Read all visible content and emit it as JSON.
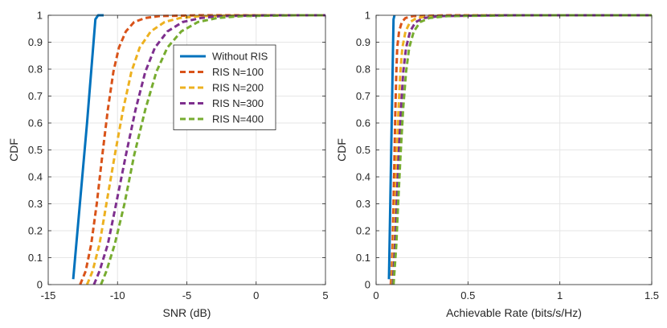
{
  "figure": {
    "colors": {
      "axis": "#262626",
      "grid": "#e6e6e6",
      "legend_border": "#262626"
    }
  },
  "chart_data": [
    {
      "type": "line",
      "xlabel": "SNR (dB)",
      "ylabel": "CDF",
      "xlim": [
        -15,
        5
      ],
      "ylim": [
        0,
        1
      ],
      "xticks": [
        -15,
        -10,
        -5,
        0,
        5
      ],
      "xtick_labels": [
        "-15",
        "-10",
        "-5",
        "0",
        "5"
      ],
      "yticks": [
        0,
        0.1,
        0.2,
        0.3,
        0.4,
        0.5,
        0.6,
        0.7,
        0.8,
        0.9,
        1
      ],
      "ytick_labels": [
        "0",
        "0.1",
        "0.2",
        "0.3",
        "0.4",
        "0.5",
        "0.6",
        "0.7",
        "0.8",
        "0.9",
        "1"
      ],
      "grid": true,
      "legend": {
        "placement": "upper-middle",
        "entries": [
          "Without RIS",
          "RIS N=100",
          "RIS N=200",
          "RIS N=300",
          "RIS N=400"
        ]
      },
      "series": [
        {
          "name": "Without RIS",
          "color": "#0072bd",
          "style": "solid",
          "x": [
            -13.2,
            -12.2,
            -11.6,
            -11.4,
            -11.0
          ],
          "y": [
            0.02,
            0.6,
            0.985,
            1.0,
            1.0
          ]
        },
        {
          "name": "RIS N=100",
          "color": "#d95319",
          "style": "dashed",
          "x": [
            -12.7,
            -12.3,
            -11.9,
            -11.5,
            -11.1,
            -10.7,
            -10.3,
            -9.9,
            -9.4,
            -8.8,
            -8.0,
            -7.0,
            -4.0,
            5.0
          ],
          "y": [
            0.0,
            0.05,
            0.15,
            0.3,
            0.48,
            0.65,
            0.79,
            0.88,
            0.94,
            0.975,
            0.99,
            0.997,
            1.0,
            1.0
          ]
        },
        {
          "name": "RIS N=200",
          "color": "#edb120",
          "style": "dashed",
          "x": [
            -12.2,
            -11.8,
            -11.3,
            -10.8,
            -10.2,
            -9.6,
            -9.0,
            -8.4,
            -7.6,
            -6.6,
            -5.5,
            -4.0,
            0.0,
            5.0
          ],
          "y": [
            0.0,
            0.05,
            0.15,
            0.3,
            0.48,
            0.65,
            0.79,
            0.88,
            0.94,
            0.975,
            0.99,
            0.997,
            1.0,
            1.0
          ]
        },
        {
          "name": "RIS N=300",
          "color": "#7e2f8e",
          "style": "dashed",
          "x": [
            -11.7,
            -11.3,
            -10.7,
            -10.1,
            -9.4,
            -8.7,
            -8.0,
            -7.3,
            -6.4,
            -5.3,
            -4.0,
            -2.5,
            1.5,
            5.0
          ],
          "y": [
            0.0,
            0.05,
            0.15,
            0.3,
            0.48,
            0.65,
            0.79,
            0.88,
            0.94,
            0.975,
            0.99,
            0.997,
            1.0,
            1.0
          ]
        },
        {
          "name": "RIS N=400",
          "color": "#77ac30",
          "style": "dashed",
          "x": [
            -11.2,
            -10.8,
            -10.2,
            -9.5,
            -8.8,
            -8.0,
            -7.2,
            -6.4,
            -5.4,
            -4.2,
            -2.8,
            -1.0,
            3.0,
            5.0
          ],
          "y": [
            0.0,
            0.05,
            0.15,
            0.3,
            0.48,
            0.65,
            0.79,
            0.88,
            0.94,
            0.975,
            0.99,
            0.997,
            1.0,
            1.0
          ]
        }
      ]
    },
    {
      "type": "line",
      "xlabel": "Achievable Rate (bits/s/Hz)",
      "ylabel": "CDF",
      "xlim": [
        0,
        1.5
      ],
      "ylim": [
        0,
        1
      ],
      "xticks": [
        0,
        0.5,
        1,
        1.5
      ],
      "xtick_labels": [
        "0",
        "0.5",
        "1",
        "1.5"
      ],
      "yticks": [
        0,
        0.1,
        0.2,
        0.3,
        0.4,
        0.5,
        0.6,
        0.7,
        0.8,
        0.9,
        1
      ],
      "ytick_labels": [
        "0",
        "0.1",
        "0.2",
        "0.3",
        "0.4",
        "0.5",
        "0.6",
        "0.7",
        "0.8",
        "0.9",
        "1"
      ],
      "grid": true,
      "series": [
        {
          "name": "Without RIS",
          "color": "#0072bd",
          "style": "solid",
          "x": [
            0.07,
            0.085,
            0.095,
            0.1
          ],
          "y": [
            0.02,
            0.6,
            0.985,
            1.0
          ]
        },
        {
          "name": "RIS N=100",
          "color": "#d95319",
          "style": "dashed",
          "x": [
            0.08,
            0.085,
            0.09,
            0.095,
            0.1,
            0.105,
            0.11,
            0.115,
            0.125,
            0.14,
            0.16,
            0.2,
            0.4,
            1.5
          ],
          "y": [
            0.0,
            0.05,
            0.15,
            0.3,
            0.48,
            0.65,
            0.79,
            0.88,
            0.94,
            0.975,
            0.99,
            0.997,
            1.0,
            1.0
          ]
        },
        {
          "name": "RIS N=200",
          "color": "#edb120",
          "style": "dashed",
          "x": [
            0.085,
            0.09,
            0.097,
            0.105,
            0.113,
            0.122,
            0.132,
            0.143,
            0.16,
            0.185,
            0.22,
            0.3,
            0.6,
            1.5
          ],
          "y": [
            0.0,
            0.05,
            0.15,
            0.3,
            0.48,
            0.65,
            0.79,
            0.88,
            0.94,
            0.975,
            0.99,
            0.997,
            1.0,
            1.0
          ]
        },
        {
          "name": "RIS N=300",
          "color": "#7e2f8e",
          "style": "dashed",
          "x": [
            0.09,
            0.095,
            0.103,
            0.112,
            0.123,
            0.135,
            0.148,
            0.163,
            0.185,
            0.215,
            0.26,
            0.35,
            0.7,
            1.5
          ],
          "y": [
            0.0,
            0.05,
            0.15,
            0.3,
            0.48,
            0.65,
            0.79,
            0.88,
            0.94,
            0.975,
            0.99,
            0.997,
            1.0,
            1.0
          ]
        },
        {
          "name": "RIS N=400",
          "color": "#77ac30",
          "style": "dashed",
          "x": [
            0.095,
            0.1,
            0.11,
            0.12,
            0.133,
            0.147,
            0.163,
            0.18,
            0.205,
            0.24,
            0.29,
            0.39,
            0.8,
            1.5
          ],
          "y": [
            0.0,
            0.05,
            0.15,
            0.3,
            0.48,
            0.65,
            0.79,
            0.88,
            0.94,
            0.975,
            0.99,
            0.997,
            1.0,
            1.0
          ]
        }
      ]
    }
  ]
}
